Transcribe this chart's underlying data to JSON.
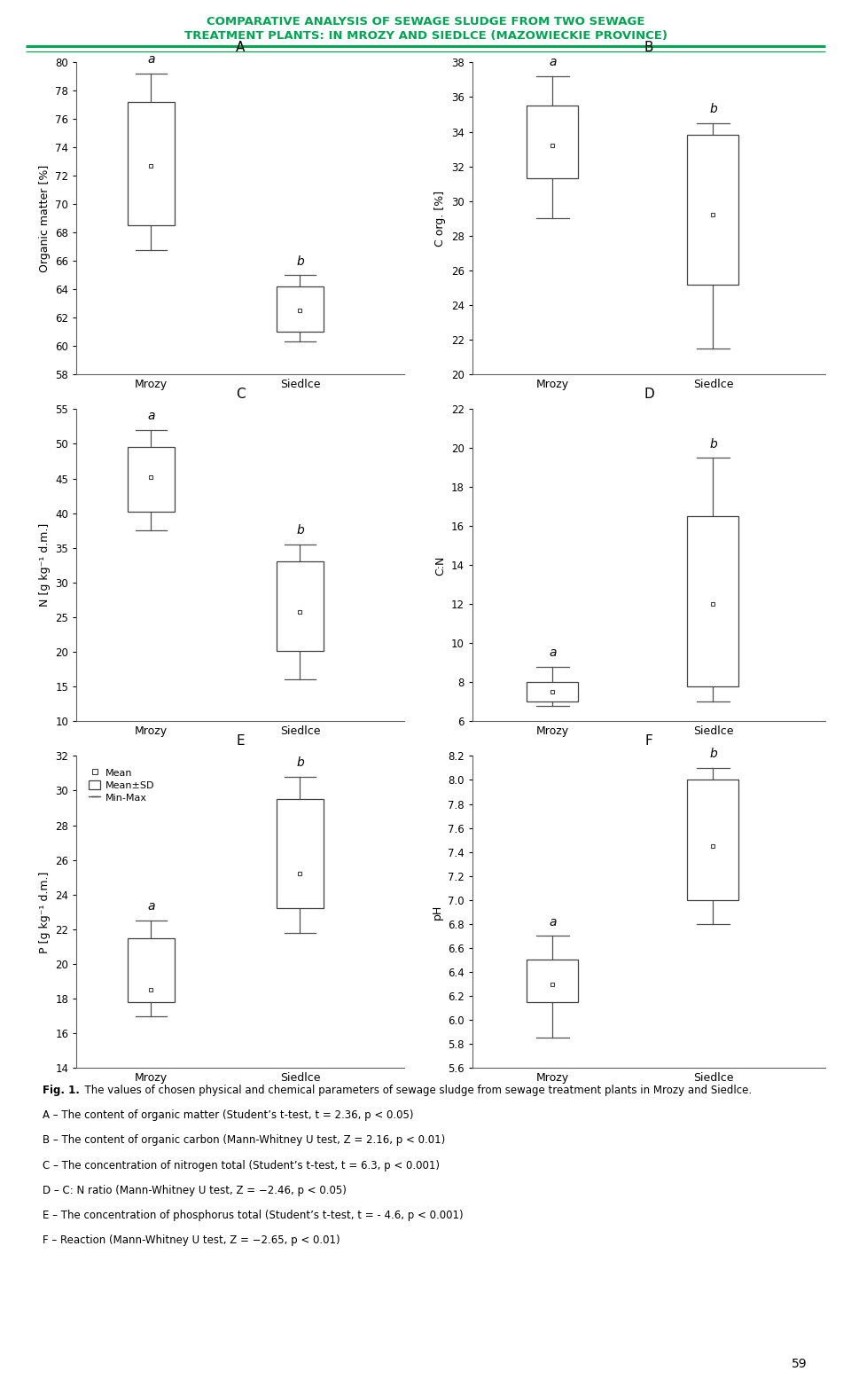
{
  "title_line1": "COMPARATIVE ANALYSIS OF SEWAGE SLUDGE FROM TWO SEWAGE",
  "title_line2": "TREATMENT PLANTS: IN MROZY AND SIEDLCE (MAZOWIECKIE PROVINCE)",
  "title_color": "#00a651",
  "panel_A": {
    "label": "A",
    "ylabel": "Organic matter [%]",
    "ylim": [
      58,
      80
    ],
    "yticks": [
      58,
      60,
      62,
      64,
      66,
      68,
      70,
      72,
      74,
      76,
      78,
      80
    ],
    "mrozy": {
      "mean": 72.7,
      "q1": 68.5,
      "q3": 77.2,
      "min": 66.8,
      "max": 79.2,
      "sig": "a"
    },
    "siedlce": {
      "mean": 62.5,
      "q1": 61.0,
      "q3": 64.2,
      "min": 60.3,
      "max": 65.0,
      "sig": "b"
    }
  },
  "panel_B": {
    "label": "B",
    "ylabel": "C org. [%]",
    "ylim": [
      20,
      38
    ],
    "yticks": [
      20,
      22,
      24,
      26,
      28,
      30,
      32,
      34,
      36,
      38
    ],
    "mrozy": {
      "mean": 33.2,
      "q1": 31.3,
      "q3": 35.5,
      "min": 29.0,
      "max": 37.2,
      "sig": "a"
    },
    "siedlce": {
      "mean": 29.2,
      "q1": 25.2,
      "q3": 33.8,
      "min": 21.5,
      "max": 34.5,
      "sig": "b"
    }
  },
  "panel_C": {
    "label": "C",
    "ylabel": "N [g kg⁻¹ d.m.]",
    "ylim": [
      10,
      55
    ],
    "yticks": [
      10,
      15,
      20,
      25,
      30,
      35,
      40,
      45,
      50,
      55
    ],
    "mrozy": {
      "mean": 45.2,
      "q1": 40.2,
      "q3": 49.5,
      "min": 37.5,
      "max": 52.0,
      "sig": "a"
    },
    "siedlce": {
      "mean": 25.8,
      "q1": 20.2,
      "q3": 33.0,
      "min": 16.0,
      "max": 35.5,
      "sig": "b"
    }
  },
  "panel_D": {
    "label": "D",
    "ylabel": "C:N",
    "ylim": [
      6,
      22
    ],
    "yticks": [
      6,
      8,
      10,
      12,
      14,
      16,
      18,
      20,
      22
    ],
    "mrozy": {
      "mean": 7.5,
      "q1": 7.0,
      "q3": 8.0,
      "min": 6.8,
      "max": 8.8,
      "sig": "a"
    },
    "siedlce": {
      "mean": 12.0,
      "q1": 7.8,
      "q3": 16.5,
      "min": 7.0,
      "max": 19.5,
      "sig": "b"
    }
  },
  "panel_E": {
    "label": "E",
    "ylabel": "P [g kg⁻¹ d.m.]",
    "ylim": [
      14,
      32
    ],
    "yticks": [
      14,
      16,
      18,
      20,
      22,
      24,
      26,
      28,
      30,
      32
    ],
    "mrozy": {
      "mean": 18.5,
      "q1": 17.8,
      "q3": 21.5,
      "min": 17.0,
      "max": 22.5,
      "sig": "a"
    },
    "siedlce": {
      "mean": 25.2,
      "q1": 23.2,
      "q3": 29.5,
      "min": 21.8,
      "max": 30.8,
      "sig": "b"
    },
    "legend": true
  },
  "panel_F": {
    "label": "F",
    "ylabel": "pH",
    "ylim": [
      5.6,
      8.2
    ],
    "yticks": [
      5.6,
      5.8,
      6.0,
      6.2,
      6.4,
      6.6,
      6.8,
      7.0,
      7.2,
      7.4,
      7.6,
      7.8,
      8.0,
      8.2
    ],
    "mrozy": {
      "mean": 6.3,
      "q1": 6.15,
      "q3": 6.5,
      "min": 5.85,
      "max": 6.7,
      "sig": "a"
    },
    "siedlce": {
      "mean": 7.45,
      "q1": 7.0,
      "q3": 8.0,
      "min": 6.8,
      "max": 8.1,
      "sig": "b"
    }
  },
  "caption_fig": "Fig. 1.",
  "caption_main": "  The values of chosen physical and chemical parameters of sewage sludge from sewage treatment plants in Mrozy and Siedlce.",
  "caption_lines": [
    "A – The content of organic matter (Student’s t-test, t = 2.36, p < 0.05)",
    "B – The content of organic carbon (Mann-Whitney U test, Z = 2.16, p < 0.01)",
    "C – The concentration of nitrogen total (Student’s t-test, t = 6.3, p < 0.001)",
    "D – C: N ratio (Mann-Whitney U test, Z = −2.46, p < 0.05)",
    "E – The concentration of phosphorus total (Student’s t-test, t = - 4.6, p < 0.001)",
    "F – Reaction (Mann-Whitney U test, Z = −2.65, p < 0.01)"
  ],
  "page_number": "59"
}
